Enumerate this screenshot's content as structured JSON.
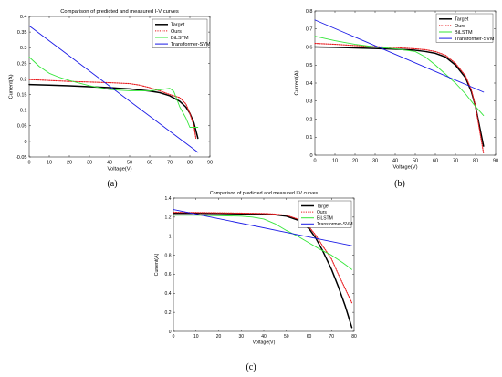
{
  "colors": {
    "target": "#000000",
    "ours": "#e8171b",
    "bilstm": "#35e63a",
    "transformer_svm": "#1a1ae6"
  },
  "chart_data": [
    {
      "type": "line",
      "caption": "(a)",
      "title": "Comparison of predicted and measured I-V curves",
      "xlabel": "Voltage(V)",
      "ylabel": "Current(A)",
      "xlim": [
        0,
        90
      ],
      "ylim": [
        -0.05,
        0.4
      ],
      "xticks": [
        0,
        10,
        20,
        30,
        40,
        50,
        60,
        70,
        80,
        90
      ],
      "yticks": [
        -0.05,
        0,
        0.05,
        0.1,
        0.15,
        0.2,
        0.25,
        0.3,
        0.35,
        0.4
      ],
      "ytick_labels": [
        "-0.05",
        "0",
        "0.05",
        "0.1",
        "0.15",
        "0.2",
        "0.25",
        "0.3",
        "0.35",
        "0.4"
      ],
      "grid": false,
      "legend_position": "top-right",
      "series": [
        {
          "name": "Target",
          "style": "solid",
          "x": [
            0,
            10,
            20,
            30,
            40,
            50,
            60,
            65,
            70,
            75,
            78,
            80,
            82,
            83,
            84
          ],
          "y": [
            0.182,
            0.18,
            0.178,
            0.175,
            0.172,
            0.168,
            0.161,
            0.156,
            0.146,
            0.128,
            0.11,
            0.09,
            0.06,
            0.035,
            0.01
          ]
        },
        {
          "name": "Ours",
          "style": "dotted",
          "x": [
            0,
            10,
            20,
            30,
            40,
            50,
            55,
            60,
            65,
            70,
            75,
            78,
            80,
            82,
            83
          ],
          "y": [
            0.198,
            0.195,
            0.192,
            0.19,
            0.188,
            0.185,
            0.18,
            0.172,
            0.162,
            0.15,
            0.14,
            0.12,
            0.09,
            0.05,
            0.01
          ]
        },
        {
          "name": "BiLSTM",
          "style": "solid",
          "x": [
            0,
            5,
            10,
            15,
            20,
            30,
            40,
            50,
            60,
            65,
            70,
            72,
            75,
            78,
            80,
            82,
            84
          ],
          "y": [
            0.27,
            0.24,
            0.218,
            0.205,
            0.195,
            0.178,
            0.166,
            0.162,
            0.162,
            0.165,
            0.17,
            0.16,
            0.11,
            0.075,
            0.045,
            0.045,
            0.045
          ]
        },
        {
          "name": "Transformer-SVM",
          "style": "solid",
          "x": [
            0,
            84
          ],
          "y": [
            0.37,
            -0.035
          ]
        }
      ]
    },
    {
      "type": "line",
      "caption": "(b)",
      "title": "",
      "xlabel": "Voltage(V)",
      "ylabel": "Current(A)",
      "xlim": [
        0,
        90
      ],
      "ylim": [
        0,
        0.8
      ],
      "xticks": [
        0,
        10,
        20,
        30,
        40,
        50,
        60,
        70,
        80,
        90
      ],
      "yticks": [
        0,
        0.1,
        0.2,
        0.3,
        0.4,
        0.5,
        0.6,
        0.7,
        0.8
      ],
      "ytick_labels": [
        "0",
        "0.1",
        "0.2",
        "0.3",
        "0.4",
        "0.5",
        "0.6",
        "0.7",
        "0.8"
      ],
      "grid": false,
      "legend_position": "top-right",
      "series": [
        {
          "name": "Target",
          "style": "solid",
          "x": [
            0,
            10,
            20,
            30,
            40,
            50,
            55,
            60,
            65,
            70,
            75,
            78,
            80,
            82,
            84
          ],
          "y": [
            0.6,
            0.598,
            0.595,
            0.592,
            0.588,
            0.582,
            0.575,
            0.565,
            0.545,
            0.5,
            0.43,
            0.35,
            0.27,
            0.16,
            0.05
          ]
        },
        {
          "name": "Ours",
          "style": "dotted",
          "x": [
            0,
            10,
            20,
            30,
            40,
            50,
            55,
            60,
            65,
            70,
            75,
            78,
            80,
            82,
            84
          ],
          "y": [
            0.62,
            0.615,
            0.608,
            0.602,
            0.597,
            0.59,
            0.585,
            0.575,
            0.555,
            0.51,
            0.44,
            0.36,
            0.27,
            0.14,
            0.01
          ]
        },
        {
          "name": "BiLSTM",
          "style": "solid",
          "x": [
            0,
            10,
            20,
            30,
            40,
            50,
            55,
            60,
            65,
            70,
            75,
            80,
            84
          ],
          "y": [
            0.66,
            0.635,
            0.615,
            0.6,
            0.59,
            0.575,
            0.545,
            0.5,
            0.45,
            0.4,
            0.34,
            0.27,
            0.22
          ]
        },
        {
          "name": "Transformer-SVM",
          "style": "solid",
          "x": [
            0,
            84
          ],
          "y": [
            0.75,
            0.35
          ]
        }
      ]
    },
    {
      "type": "line",
      "caption": "(c)",
      "title": "Comparison of predicted and measured I-V curves",
      "xlabel": "Voltage(V)",
      "ylabel": "Current(A)",
      "xlim": [
        0,
        80
      ],
      "ylim": [
        0,
        1.4
      ],
      "xticks": [
        0,
        10,
        20,
        30,
        40,
        50,
        60,
        70,
        80
      ],
      "yticks": [
        0,
        0.2,
        0.4,
        0.6,
        0.8,
        1,
        1.2,
        1.4
      ],
      "ytick_labels": [
        "0",
        "0.2",
        "0.4",
        "0.6",
        "0.8",
        "1",
        "1.2",
        "1.4"
      ],
      "grid": false,
      "legend_position": "top-right",
      "series": [
        {
          "name": "Target",
          "style": "solid",
          "x": [
            0,
            10,
            20,
            30,
            40,
            45,
            50,
            55,
            60,
            63,
            66,
            70,
            73,
            76,
            79
          ],
          "y": [
            1.24,
            1.24,
            1.238,
            1.235,
            1.23,
            1.225,
            1.21,
            1.17,
            1.08,
            0.98,
            0.85,
            0.65,
            0.47,
            0.27,
            0.04
          ]
        },
        {
          "name": "Ours",
          "style": "dotted",
          "x": [
            0,
            10,
            20,
            30,
            40,
            45,
            50,
            55,
            60,
            63,
            66,
            70,
            73,
            76,
            79
          ],
          "y": [
            1.25,
            1.248,
            1.245,
            1.242,
            1.238,
            1.232,
            1.22,
            1.18,
            1.1,
            1.01,
            0.9,
            0.76,
            0.6,
            0.45,
            0.3
          ]
        },
        {
          "name": "BiLSTM",
          "style": "solid",
          "x": [
            0,
            10,
            20,
            30,
            35,
            40,
            45,
            50,
            55,
            60,
            65,
            70,
            75,
            79
          ],
          "y": [
            1.22,
            1.22,
            1.215,
            1.21,
            1.2,
            1.18,
            1.13,
            1.06,
            1.0,
            0.93,
            0.86,
            0.8,
            0.72,
            0.65
          ]
        },
        {
          "name": "Transformer-SVM",
          "style": "solid",
          "x": [
            0,
            79
          ],
          "y": [
            1.28,
            0.9
          ]
        }
      ]
    }
  ]
}
